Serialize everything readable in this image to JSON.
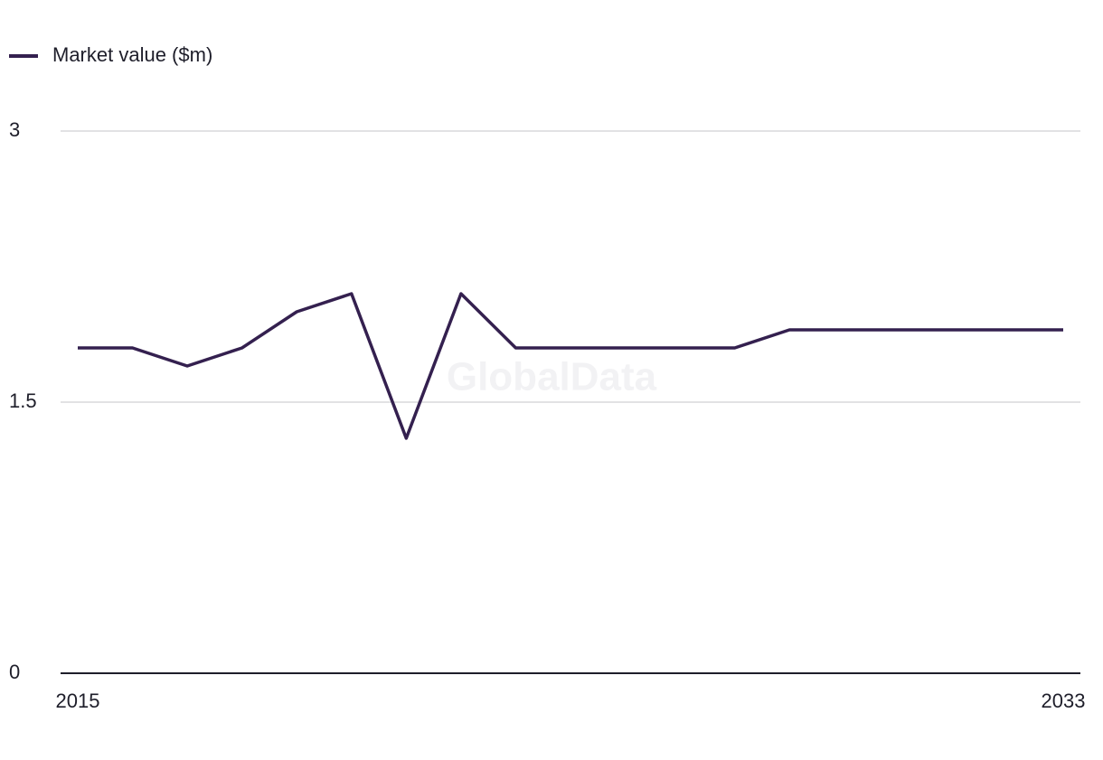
{
  "chart_data": {
    "type": "line",
    "watermark": "GlobalData",
    "x": [
      2015,
      2016,
      2017,
      2018,
      2019,
      2020,
      2021,
      2022,
      2023,
      2024,
      2025,
      2026,
      2027,
      2028,
      2029,
      2030,
      2031,
      2032,
      2033
    ],
    "series": [
      {
        "name": "Market value ($m)",
        "color": "#34204f",
        "values": [
          1.8,
          1.8,
          1.7,
          1.8,
          2.0,
          2.1,
          1.3,
          2.1,
          1.8,
          1.8,
          1.8,
          1.8,
          1.8,
          1.9,
          1.9,
          1.9,
          1.9,
          1.9,
          1.9
        ]
      }
    ],
    "xlim": [
      2015,
      2033
    ],
    "xticks": [
      2015,
      2033
    ],
    "ylim": [
      0,
      3
    ],
    "yticks": [
      0,
      1.5,
      3
    ],
    "grid": true,
    "legend": "top-left"
  }
}
